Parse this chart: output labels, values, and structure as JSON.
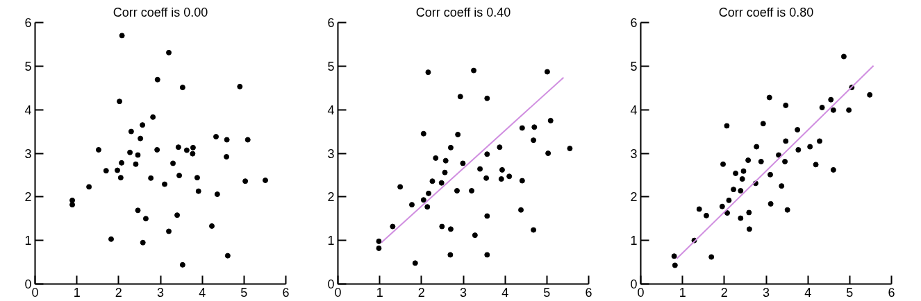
{
  "chart_data": [
    {
      "type": "scatter",
      "title": "Corr coeff is 0.00",
      "xlim": [
        0,
        6
      ],
      "ylim": [
        0,
        6
      ],
      "xticks": [
        0,
        1,
        2,
        3,
        4,
        5,
        6
      ],
      "yticks": [
        0,
        1,
        2,
        3,
        4,
        5,
        6
      ],
      "grid": false,
      "marker": "circle",
      "series": [
        {
          "color": "#000000",
          "x": [
            2.08,
            3.2,
            2.93,
            3.53,
            4.9,
            2.02,
            2.82,
            2.57,
            2.3,
            2.52,
            1.52,
            2.27,
            2.46,
            2.92,
            3.43,
            3.63,
            3.78,
            3.77,
            4.33,
            4.59,
            5.09,
            4.58,
            2.07,
            2.41,
            3.3,
            1.7,
            1.97,
            2.05,
            2.77,
            3.45,
            3.88,
            5.03,
            5.51,
            3.1,
            1.29,
            3.91,
            4.36,
            0.89,
            0.89,
            2.46,
            2.65,
            3.4,
            3.2,
            4.23,
            1.82,
            2.58,
            4.61,
            3.53
          ],
          "values": [
            5.7,
            5.31,
            4.69,
            4.51,
            4.53,
            4.19,
            3.83,
            3.65,
            3.5,
            3.34,
            3.08,
            3.02,
            2.96,
            3.08,
            3.14,
            3.07,
            3.13,
            2.99,
            3.38,
            3.31,
            3.31,
            2.92,
            2.78,
            2.75,
            2.77,
            2.6,
            2.61,
            2.44,
            2.43,
            2.49,
            2.44,
            2.36,
            2.38,
            2.29,
            2.23,
            2.13,
            2.06,
            1.92,
            1.82,
            1.69,
            1.5,
            1.58,
            1.21,
            1.33,
            1.03,
            0.95,
            0.65,
            0.44
          ]
        }
      ]
    },
    {
      "type": "scatter",
      "title": "Corr coeff is 0.40",
      "xlim": [
        0,
        6
      ],
      "ylim": [
        0,
        6
      ],
      "xticks": [
        0,
        1,
        2,
        3,
        4,
        5,
        6
      ],
      "yticks": [
        0,
        1,
        2,
        3,
        4,
        5,
        6
      ],
      "grid": false,
      "marker": "circle",
      "series": [
        {
          "color": "#000000",
          "x": [
            2.16,
            3.25,
            5.01,
            2.93,
            3.57,
            5.09,
            2.05,
            2.87,
            4.41,
            4.7,
            4.68,
            2.7,
            3.87,
            3.57,
            5.03,
            5.55,
            2.34,
            2.58,
            2.99,
            3.4,
            2.56,
            3.93,
            3.91,
            4.1,
            3.55,
            4.41,
            2.26,
            2.48,
            1.49,
            2.17,
            2.05,
            2.14,
            2.85,
            3.2,
            1.77,
            4.38,
            3.57,
            1.31,
            2.49,
            2.7,
            4.68,
            3.28,
            0.98,
            0.98,
            2.69,
            3.57,
            1.85
          ],
          "values": [
            4.86,
            4.9,
            4.87,
            4.3,
            4.26,
            3.75,
            3.45,
            3.43,
            3.58,
            3.6,
            3.3,
            3.13,
            3.14,
            2.98,
            3.0,
            3.11,
            2.89,
            2.83,
            2.77,
            2.64,
            2.56,
            2.62,
            2.41,
            2.47,
            2.43,
            2.37,
            2.36,
            2.32,
            2.23,
            2.08,
            1.93,
            1.77,
            2.14,
            2.14,
            1.82,
            1.7,
            1.56,
            1.32,
            1.32,
            1.26,
            1.24,
            1.12,
            0.98,
            0.82,
            0.67,
            0.67,
            0.48
          ]
        },
        {
          "type": "line",
          "marker": "none",
          "color": "#d08ee0",
          "x": [
            1.04,
            5.4
          ],
          "values": [
            0.95,
            4.74
          ]
        }
      ]
    },
    {
      "type": "scatter",
      "title": "Corr coeff is 0.80",
      "xlim": [
        0,
        6
      ],
      "ylim": [
        0,
        6
      ],
      "xticks": [
        0,
        1,
        2,
        3,
        4,
        5,
        6
      ],
      "yticks": [
        0,
        1,
        2,
        3,
        4,
        5,
        6
      ],
      "grid": false,
      "marker": "circle",
      "series": [
        {
          "color": "#000000",
          "x": [
            4.86,
            5.48,
            5.05,
            3.08,
            3.47,
            4.55,
            4.34,
            4.61,
            4.98,
            2.06,
            2.93,
            3.75,
            2.77,
            3.47,
            3.77,
            4.05,
            4.28,
            1.97,
            2.57,
            2.88,
            3.3,
            3.45,
            4.19,
            4.61,
            2.27,
            2.46,
            2.43,
            3.1,
            2.75,
            2.22,
            2.39,
            3.37,
            2.11,
            1.95,
            2.07,
            1.4,
            1.57,
            3.11,
            3.51,
            2.39,
            2.59,
            2.6,
            1.28,
            1.69,
            0.8,
            0.82
          ],
          "values": [
            5.22,
            4.34,
            4.51,
            4.28,
            4.1,
            4.23,
            4.05,
            3.99,
            3.99,
            3.63,
            3.68,
            3.54,
            3.15,
            3.28,
            3.08,
            3.15,
            3.28,
            2.75,
            2.84,
            2.81,
            2.96,
            2.81,
            2.74,
            2.62,
            2.54,
            2.59,
            2.41,
            2.51,
            2.31,
            2.17,
            2.14,
            2.25,
            1.92,
            1.78,
            1.63,
            1.72,
            1.57,
            1.84,
            1.7,
            1.51,
            1.64,
            1.26,
            1.0,
            0.62,
            0.64,
            0.43
          ]
        },
        {
          "type": "line",
          "marker": "none",
          "color": "#d08ee0",
          "x": [
            0.86,
            5.57
          ],
          "values": [
            0.58,
            5.01
          ]
        }
      ]
    }
  ]
}
